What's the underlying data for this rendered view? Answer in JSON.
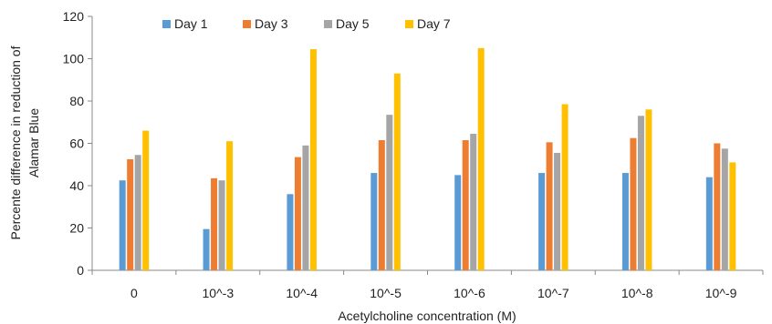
{
  "chart_data": {
    "type": "bar",
    "title": "",
    "xlabel": "Acetylcholine concentration (M)",
    "ylabel": "Percente difference in reduction of Alamar Blue",
    "ylabel_lines": [
      "Percente difference in reduction of",
      "Alamar Blue"
    ],
    "ylim": [
      0,
      120
    ],
    "yticks": [
      0,
      20,
      40,
      60,
      80,
      100,
      120
    ],
    "grid": false,
    "legend_position": "top",
    "categories": [
      "0",
      "10^-3",
      "10^-4",
      "10^-5",
      "10^-6",
      "10^-7",
      "10^-8",
      "10^-9"
    ],
    "series": [
      {
        "name": "Day 1",
        "color": "#5B9BD5",
        "values": [
          42.5,
          19.5,
          36,
          46,
          45,
          46,
          46,
          44
        ]
      },
      {
        "name": "Day 3",
        "color": "#ED7D31",
        "values": [
          52.5,
          43.5,
          53.5,
          61.5,
          61.5,
          60.5,
          62.5,
          60
        ]
      },
      {
        "name": "Day 5",
        "color": "#A5A5A5",
        "values": [
          54.5,
          42.5,
          59,
          73.5,
          64.5,
          55.5,
          73,
          57.5
        ]
      },
      {
        "name": "Day 7",
        "color": "#FFC000",
        "values": [
          66,
          61,
          104.5,
          93,
          105,
          78.5,
          76,
          51
        ]
      }
    ]
  }
}
